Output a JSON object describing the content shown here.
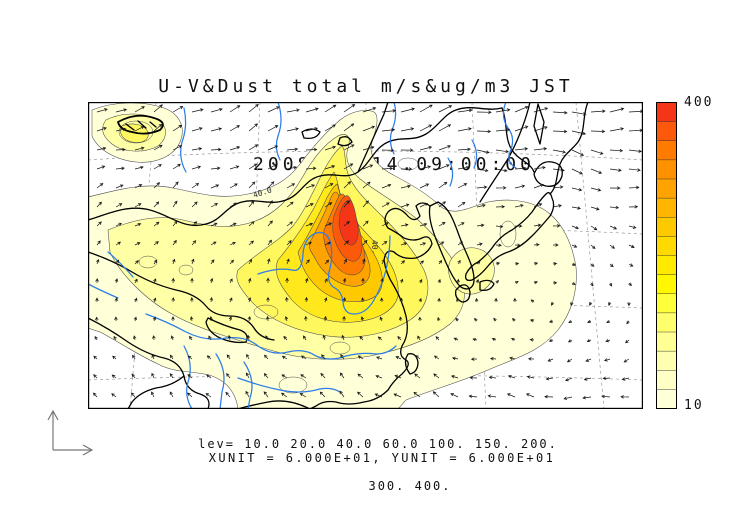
{
  "title": {
    "line1": "U-V&Dust total m/s&ug/m3 JST",
    "line2": "2008/05/14.09:00:00"
  },
  "legend": {
    "lev_line1": "lev= 10.0 20.0 40.0 60.0 100. 150. 200.",
    "lev_line2": "300. 400.",
    "units_line": "XUNIT = 6.000E+01, YUNIT = 6.000E+01"
  },
  "colorbar": {
    "max_label": "400",
    "min_label": "10",
    "segments": [
      "#F53517",
      "#FC5A0A",
      "#FE7B00",
      "#FF9000",
      "#FFA300",
      "#FFB600",
      "#FFC900",
      "#FFDA00",
      "#FFEA00",
      "#FFF800",
      "#FFFF3A",
      "#FFFF6E",
      "#FFFF93",
      "#FFFFB0",
      "#FFFFC6",
      "#FFFFD8"
    ]
  },
  "map": {
    "contour_label_1": "40.0",
    "contour_label_2": "40."
  },
  "chart_data": {
    "type": "contour-map",
    "variable": "Dust total",
    "overlay": "U-V wind vectors",
    "units": {
      "wind": "m/s",
      "dust": "ug/m3"
    },
    "time_zone": "JST",
    "time_label": "2008/05/14.09:00:00",
    "contour_levels": [
      10,
      20,
      40,
      60,
      100,
      150,
      200,
      300,
      400
    ],
    "colorbar_range": {
      "min": 10,
      "max": 400
    },
    "xunit": "6.000E+01",
    "yunit": "6.000E+01",
    "fill_colors": {
      "10": "#FFFFD8",
      "20": "#FFFFA6",
      "40": "#FFF75E",
      "60": "#FFE81C",
      "100": "#FFC900",
      "150": "#FFA300",
      "200": "#FE7B00",
      "300": "#FC5A0A",
      "400": "#F53517"
    },
    "notes": "dust plume maximum over North China; pale plume extends over Yellow Sea, Korea and western Japan"
  },
  "colors": {
    "river": "#2B7CE9",
    "coast": "#000000",
    "graticule": "#9A9A9A",
    "arrow": "#151515",
    "contour": "#4A4A4A",
    "axis_indicator": "#777777"
  }
}
